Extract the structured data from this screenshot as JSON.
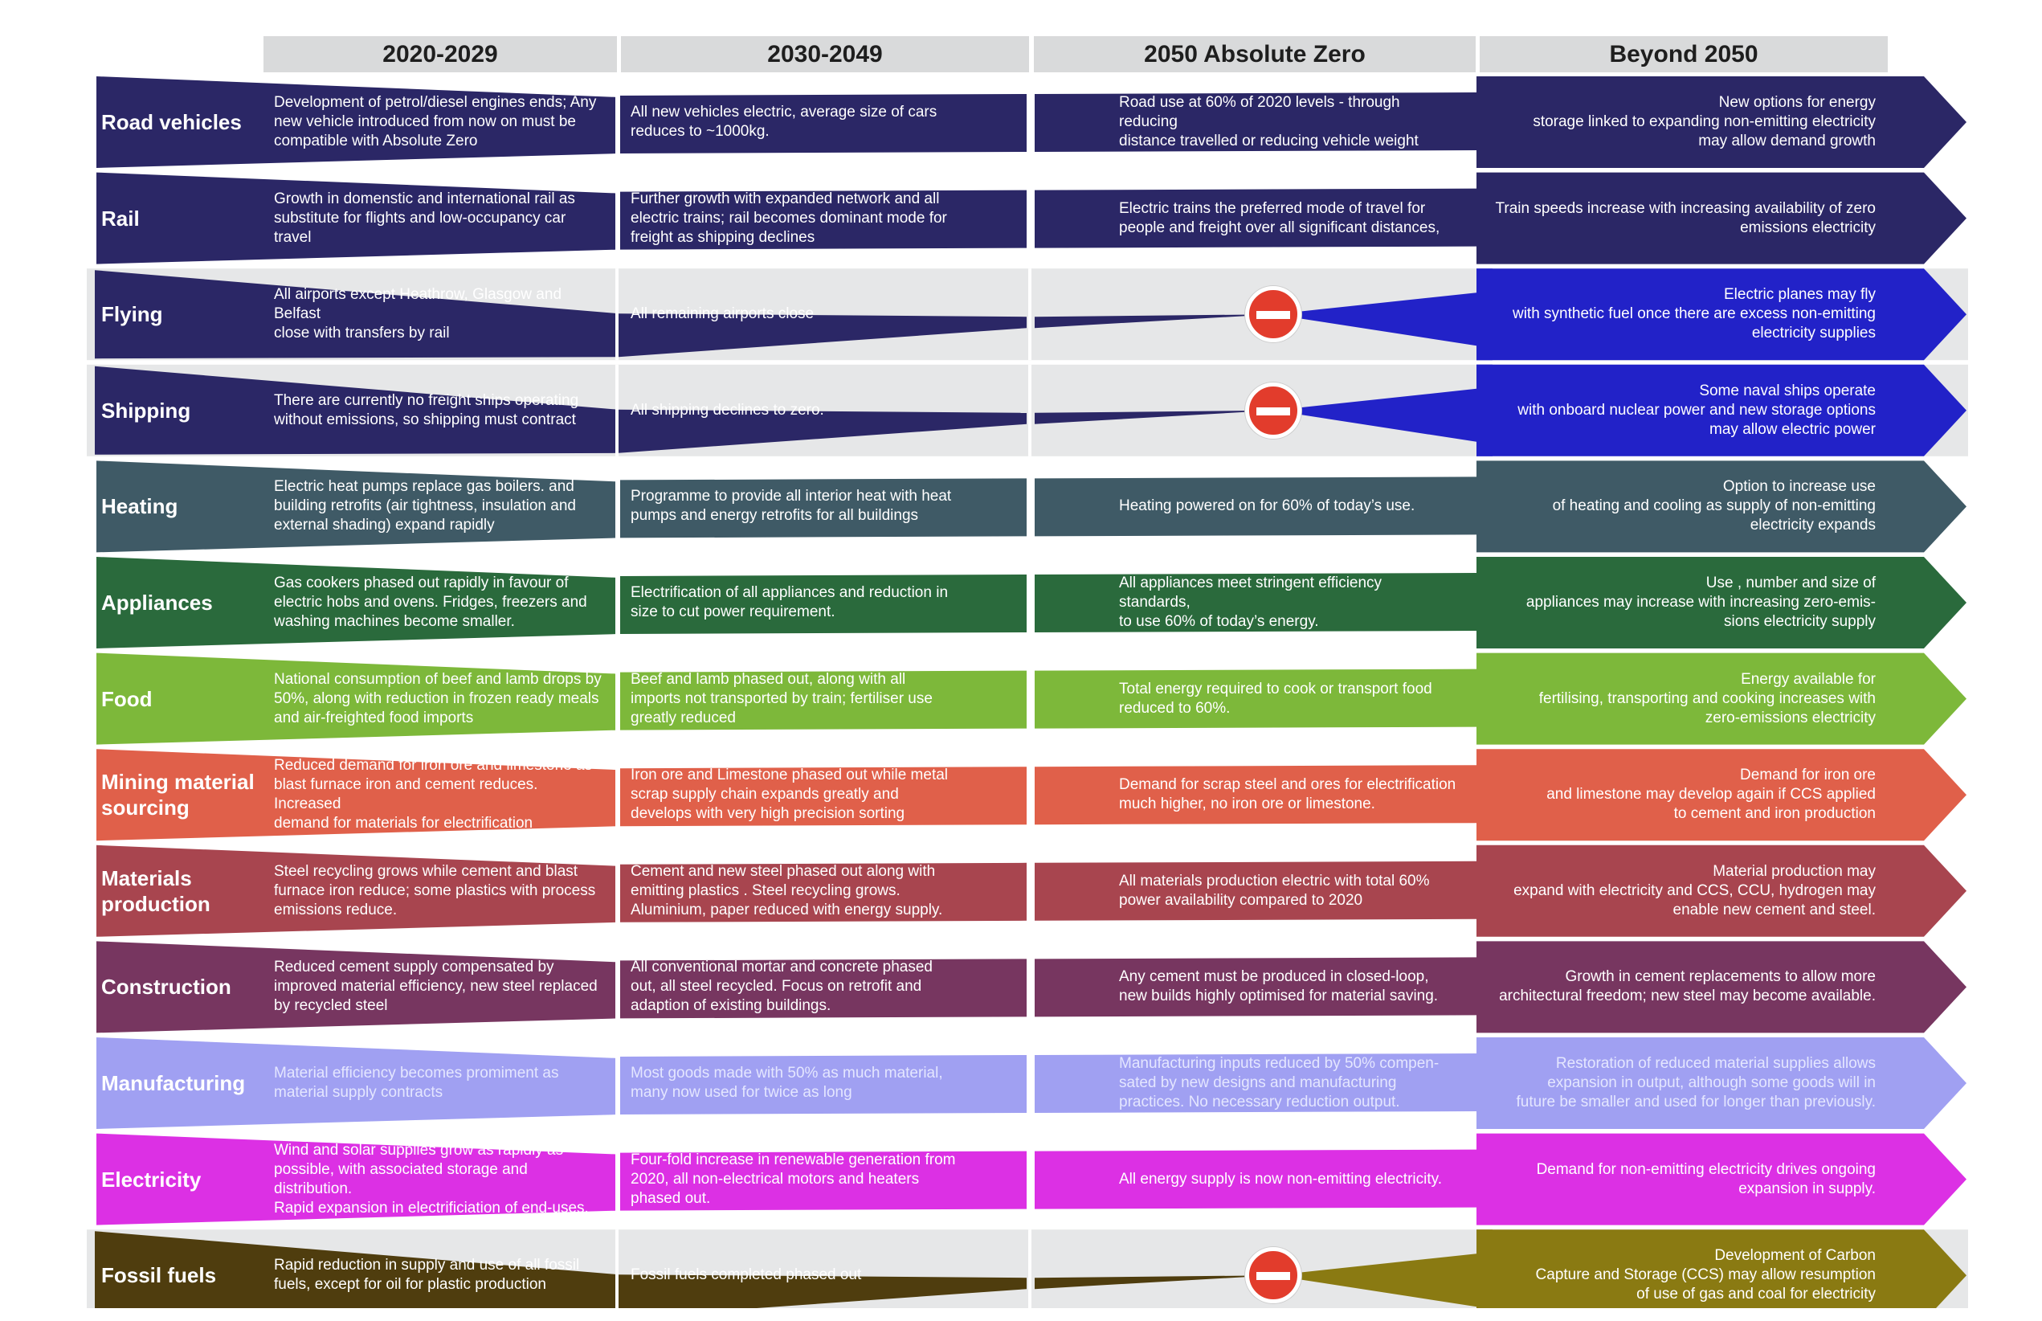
{
  "headers": [
    "2020-2029",
    "2030-2049",
    "2050 Absolute Zero",
    "Beyond 2050"
  ],
  "rows": [
    {
      "label": "Road vehicles",
      "color": "#2b2766",
      "beyond_color": "#2b2766",
      "stop": false,
      "cells": [
        "Development of petrol/diesel engines ends; Any\nnew vehicle introduced from now on must be\ncompatible with Absolute Zero",
        "All new vehicles electric, average size of cars\nreduces to ~1000kg.",
        "Road use at 60% of 2020 levels - through reducing\ndistance travelled or reducing vehicle weight",
        "New options for energy\nstorage linked to expanding non-emitting electricity\nmay allow demand growth"
      ]
    },
    {
      "label": "Rail",
      "color": "#2b2766",
      "beyond_color": "#2b2766",
      "stop": false,
      "cells": [
        "Growth in domenstic and international rail as\nsubstitute for flights and low-occupancy car travel",
        "Further growth with expanded network and all\nelectric trains; rail becomes dominant mode for\nfreight as shipping declines",
        "Electric trains the preferred mode of travel for\npeople and freight over all significant distances,",
        "Train speeds increase with increasing availability of zero\nemissions electricity"
      ]
    },
    {
      "label": "Flying",
      "color": "#2b2766",
      "beyond_color": "#2222c8",
      "stop": true,
      "cells": [
        "All airports except Heathrow, Glasgow and Belfast\nclose with transfers by rail",
        "All remaining airports close",
        "",
        "Electric planes may fly\nwith synthetic fuel once  there are excess non-emitting\nelectricity supplies"
      ]
    },
    {
      "label": "Shipping",
      "color": "#2b2766",
      "beyond_color": "#2222c8",
      "stop": true,
      "cells": [
        "There are currently no freight ships operating\nwithout emissions, so shipping must contract",
        "All shipping declines to zero.",
        "",
        "Some naval ships operate\nwith onboard nuclear power and new storage options\nmay allow electric power"
      ]
    },
    {
      "label": "Heating",
      "color": "#3f5a66",
      "beyond_color": "#3f5a66",
      "stop": false,
      "cells": [
        "Electric heat pumps replace gas boilers. and\nbuilding retrofits (air tightness, insulation and\nexternal shading) expand rapidly",
        "Programme to provide all interior heat with heat\npumps and energy retrofits for all buildings",
        "Heating powered on for 60% of today’s use.",
        "Option to increase use\nof heating and cooling as supply of non-emitting\nelectricity expands"
      ]
    },
    {
      "label": "Appliances",
      "color": "#2a6a3c",
      "beyond_color": "#2a6a3c",
      "stop": false,
      "cells": [
        "Gas cookers phased out rapidly in favour of\nelectric hobs and ovens. Fridges, freezers and\nwashing machines become smaller.",
        "Electrification of all appliances and reduction in\nsize to cut power requirement.",
        "All appliances meet stringent efficiency standards,\nto use 60% of today’s energy.",
        "Use , number and size of\nappliances  may increase with increasing zero-emis-\nsions electricity supply"
      ]
    },
    {
      "label": "Food",
      "color": "#7db83a",
      "beyond_color": "#7db83a",
      "stop": false,
      "cells": [
        "National consumption of beef and lamb drops by\n50%, along with reduction in frozen ready meals\nand air-freighted food imports",
        "Beef and lamb phased out, along with all\nimports not transported by train; fertiliser use\ngreatly reduced",
        "Total energy required to cook or transport food\nreduced to 60%.",
        "Energy available for\nfertilising, transporting and cooking increases with\nzero-emissions electricity"
      ]
    },
    {
      "label": "Mining  material\nsourcing",
      "color": "#e0604a",
      "beyond_color": "#e0604a",
      "stop": false,
      "cells": [
        "Reduced demand for iron ore and limestone as\nblast furnace iron and cement reduces. Increased\ndemand for materials for electrification",
        "Iron ore and Limestone phased out while metal\nscrap supply chain expands greatly and\ndevelops with very high precision sorting",
        "Demand for scrap steel and ores for electrification\nmuch higher, no iron ore or limestone.",
        "Demand for iron ore\nand limestone may develop again if CCS applied\nto cement and iron production"
      ]
    },
    {
      "label": "Materials\nproduction",
      "color": "#a8454f",
      "beyond_color": "#a8454f",
      "stop": false,
      "cells": [
        "Steel recycling grows while cement and blast\nfurnace iron reduce; some plastics with process\nemissions reduce.",
        "Cement and new steel phased out along with\nemitting plastics . Steel recycling grows.\nAluminium, paper reduced with energy supply.",
        "All materials production electric with total 60%\npower availability compared to 2020",
        "Material production may\nexpand with electricity and CCS, CCU, hydrogen may\nenable new cement and steel."
      ]
    },
    {
      "label": "Construction",
      "color": "#773660",
      "beyond_color": "#773660",
      "stop": false,
      "cells": [
        "Reduced cement supply compensated by\nimproved material efficiency, new steel replaced\nby recycled steel",
        "All conventional mortar and concrete phased\nout, all steel recycled. Focus on retrofit and\nadaption of existing buildings.",
        "Any cement must be produced in closed-loop,\nnew builds highly optimised for material saving.",
        "Growth in cement replacements to allow more\narchitectural freedom; new steel may become available."
      ]
    },
    {
      "label": "Manufacturing",
      "color": "#a0a0f2",
      "beyond_color": "#a0a0f2",
      "stop": false,
      "cells": [
        "Material efficiency becomes promiment as\nmaterial supply contracts",
        "Most goods made with 50% as much material,\nmany now used for twice as long",
        "Manufacturing inputs reduced by 50% compen-\nsated by new designs and manufacturing\npractices. No necessary reduction output.",
        "Restoration of reduced material supplies allows\nexpansion in output, although some goods will in\nfuture be smaller and used for longer than previously."
      ]
    },
    {
      "label": "Electricity",
      "color": "#dc30e4",
      "beyond_color": "#dc30e4",
      "stop": false,
      "cells": [
        "Wind and solar supplies grow as rapidly as\npossible, with associated storage and distribution.\nRapid expansion in electrificiation of end-uses.",
        "Four-fold increase in renewable generation from\n2020, all non-electrical motors and heaters\nphased out.",
        "All energy supply is now non-emitting electricity.",
        "Demand for non-emitting electricity drives ongoing\nexpansion in supply."
      ]
    },
    {
      "label": "Fossil fuels",
      "color": "#4f3d0e",
      "beyond_color": "#8a7a12",
      "stop": true,
      "cells": [
        "Rapid reduction in supply and use of all fossil\nfuels, except for oil for plastic production",
        "Fossil fuels completed phased out",
        "",
        "Development of Carbon\nCapture and Storage (CCS) may allow resumption\nof use of gas and coal for electricity"
      ]
    }
  ]
}
